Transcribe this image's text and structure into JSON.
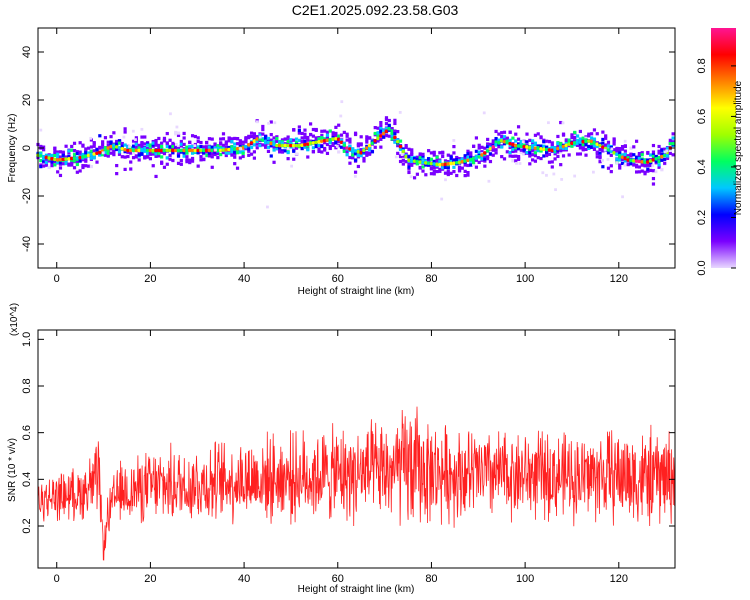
{
  "title": "C2E1.2025.092.23.58.G03",
  "chart_data": [
    {
      "type": "heatmap",
      "xlabel": "Height of straight line (km)",
      "ylabel": "Frequency (Hz)",
      "xlim": [
        -4,
        132
      ],
      "ylim": [
        -50,
        50
      ],
      "xticks": [
        0,
        20,
        40,
        60,
        80,
        100,
        120
      ],
      "yticks": [
        -40,
        -20,
        0,
        20,
        40
      ],
      "colorbar": {
        "label": "Normalized spectral amplitude",
        "range": [
          0,
          0.95
        ],
        "ticks": [
          "0.0",
          "0.2",
          "0.4",
          "0.6",
          "0.8"
        ],
        "colors": [
          "#e8d8ff",
          "#7a00ff",
          "#0000ff",
          "#00c8ff",
          "#00ff60",
          "#a0ff00",
          "#ffff00",
          "#ff8000",
          "#ff0000",
          "#ff1493"
        ]
      },
      "trace": {
        "x": [
          -4,
          0,
          5,
          9,
          12,
          15,
          20,
          25,
          30,
          35,
          40,
          43,
          47,
          52,
          57,
          60,
          62,
          65,
          68,
          71,
          73,
          75,
          78,
          82,
          86,
          90,
          95,
          98,
          102,
          106,
          110,
          114,
          118,
          122,
          126,
          130,
          132
        ],
        "y": [
          -3,
          -5,
          -4,
          -2,
          1,
          -1,
          -1,
          -1,
          -1,
          -1,
          0,
          4,
          1,
          1,
          3,
          4,
          0,
          -2,
          3,
          8,
          2,
          -5,
          -6,
          -7,
          -6,
          -4,
          3,
          1,
          0,
          -1,
          2,
          3,
          -1,
          -5,
          -6,
          -3,
          3
        ]
      }
    },
    {
      "type": "line",
      "xlabel": "Height of straight line (km)",
      "ylabel": "SNR (10 * v/v)",
      "yscale_label": "(x10^4)",
      "xlim": [
        -4,
        132
      ],
      "ylim": [
        0.02,
        1.04
      ],
      "xticks": [
        0,
        20,
        40,
        60,
        80,
        100,
        120
      ],
      "yticks": [
        0.2,
        0.4,
        0.6,
        0.8,
        1.0
      ],
      "color": "#ff2020",
      "envelope": {
        "x": [
          -4,
          0,
          5,
          9,
          10,
          11,
          13,
          20,
          30,
          40,
          50,
          60,
          70,
          76,
          80,
          90,
          100,
          110,
          120,
          126,
          132
        ],
        "mean": [
          0.3,
          0.33,
          0.34,
          0.4,
          0.1,
          0.25,
          0.34,
          0.37,
          0.38,
          0.4,
          0.41,
          0.42,
          0.43,
          0.45,
          0.43,
          0.42,
          0.42,
          0.41,
          0.42,
          0.4,
          0.42
        ],
        "amp": [
          0.1,
          0.12,
          0.13,
          0.2,
          0.06,
          0.12,
          0.15,
          0.18,
          0.2,
          0.21,
          0.22,
          0.24,
          0.25,
          0.33,
          0.25,
          0.23,
          0.22,
          0.22,
          0.24,
          0.25,
          0.24
        ]
      }
    }
  ]
}
